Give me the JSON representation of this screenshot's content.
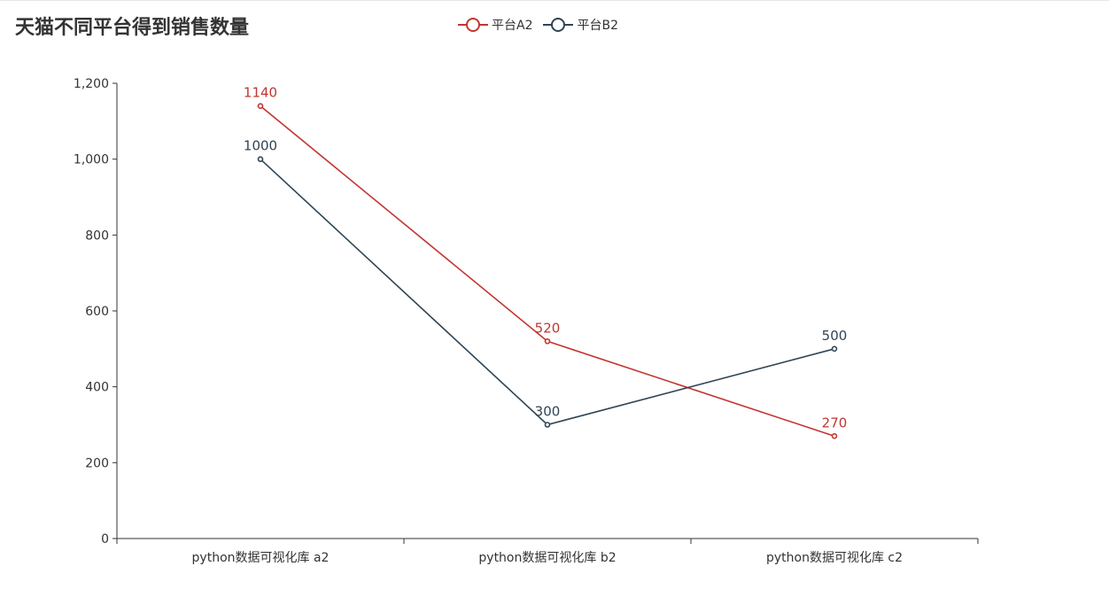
{
  "chart_data": {
    "type": "line",
    "title": "天猫不同平台得到销售数量",
    "categories": [
      "python数据可视化库 a2",
      "python数据可视化库 b2",
      "python数据可视化库 c2"
    ],
    "series": [
      {
        "name": "平台A2",
        "values": [
          1140,
          520,
          270
        ],
        "color": "#c23531"
      },
      {
        "name": "平台B2",
        "values": [
          1000,
          300,
          500
        ],
        "color": "#2f4554"
      }
    ],
    "ylim": [
      0,
      1200
    ],
    "yticks": [
      "0",
      "200",
      "400",
      "600",
      "800",
      "1,000",
      "1,200"
    ],
    "ytick_values": [
      0,
      200,
      400,
      600,
      800,
      1000,
      1200
    ],
    "xlabel": "",
    "ylabel": "",
    "grid": false,
    "legend_position": "top-center",
    "axis_color": "#333333"
  }
}
